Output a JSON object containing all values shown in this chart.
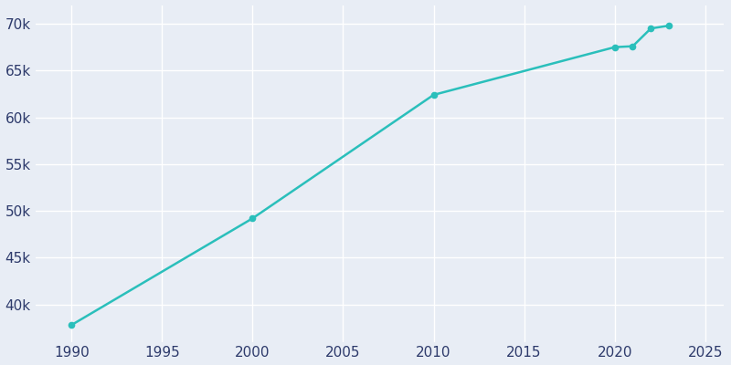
{
  "years": [
    1990,
    2000,
    2010,
    2020,
    2021,
    2022,
    2023
  ],
  "population": [
    37800,
    49200,
    62400,
    67500,
    67600,
    69500,
    69800
  ],
  "line_color": "#2ABFBB",
  "marker_color": "#2ABFBB",
  "background_color": "#E8EDF5",
  "grid_color": "#FFFFFF",
  "tick_color": "#2D3A6B",
  "xlim": [
    1988,
    2026
  ],
  "ylim": [
    36000,
    72000
  ],
  "xticks": [
    1990,
    1995,
    2000,
    2005,
    2010,
    2015,
    2020,
    2025
  ],
  "yticks": [
    40000,
    45000,
    50000,
    55000,
    60000,
    65000,
    70000
  ],
  "marker_size": 4.5,
  "linewidth": 1.8
}
